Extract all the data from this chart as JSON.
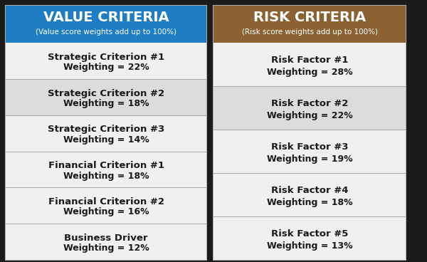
{
  "value_title": "VALUE CRITERIA",
  "value_subtitle": "(Value score weights add up to 100%)",
  "value_header_color": "#1F7DC4",
  "value_items": [
    {
      "label": "Strategic Criterion #1",
      "weight": "Weighting = 22%",
      "bg": "#F0F0F0"
    },
    {
      "label": "Strategic Criterion #2",
      "weight": "Weighting = 18%",
      "bg": "#DCDCDC"
    },
    {
      "label": "Strategic Criterion #3",
      "weight": "Weighting = 14%",
      "bg": "#F0F0F0"
    },
    {
      "label": "Financial Criterion #1",
      "weight": "Weighting = 18%",
      "bg": "#F0F0F0"
    },
    {
      "label": "Financial Criterion #2",
      "weight": "Weighting = 16%",
      "bg": "#F0F0F0"
    },
    {
      "label": "Business Driver",
      "weight": "Weighting = 12%",
      "bg": "#F0F0F0"
    }
  ],
  "risk_title": "RISK CRITERIA",
  "risk_subtitle": "(Risk score weights add up to 100%)",
  "risk_header_color": "#8B6333",
  "risk_items": [
    {
      "label": "Risk Factor #1",
      "weight": "Weighting = 28%",
      "bg": "#F0F0F0"
    },
    {
      "label": "Risk Factor #2",
      "weight": "Weighting = 22%",
      "bg": "#DCDCDC"
    },
    {
      "label": "Risk Factor #3",
      "weight": "Weighting = 19%",
      "bg": "#F0F0F0"
    },
    {
      "label": "Risk Factor #4",
      "weight": "Weighting = 18%",
      "bg": "#F0F0F0"
    },
    {
      "label": "Risk Factor #5",
      "weight": "Weighting = 13%",
      "bg": "#F0F0F0"
    }
  ],
  "text_color": "#1A1A1A",
  "border_color": "#AAAAAA",
  "outer_bg": "#1A1A1A",
  "white": "#FFFFFF",
  "fig_w": 600,
  "fig_h": 368
}
